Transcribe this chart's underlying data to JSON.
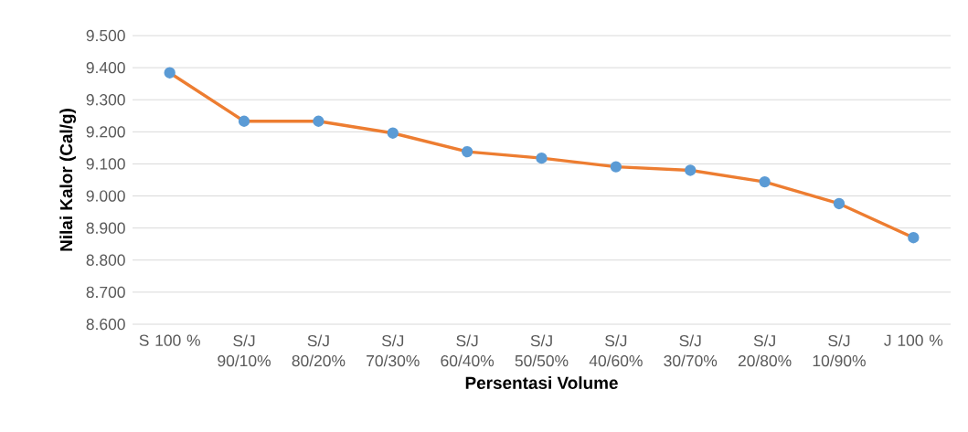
{
  "chart_data": {
    "type": "line",
    "xlabel": "Persentasi Volume",
    "ylabel": "Nilai Kalor (Cal/g)",
    "categories": [
      "S 100 %",
      "S/J 90/10%",
      "S/J 80/20%",
      "S/J 70/30%",
      "S/J 60/40%",
      "S/J 50/50%",
      "S/J 40/60%",
      "S/J 30/70%",
      "S/J 20/80%",
      "S/J 10/90%",
      "J 100 %"
    ],
    "series": [
      {
        "color": "#ed7d31",
        "values": [
          9384,
          9233,
          9233,
          9196,
          9138,
          9118,
          9091,
          9080,
          9044,
          8976,
          8870
        ]
      }
    ],
    "ylim": [
      8600,
      9500
    ],
    "yticks": [
      {
        "value": 8600,
        "label": "8.600"
      },
      {
        "value": 8700,
        "label": "8.700"
      },
      {
        "value": 8800,
        "label": "8.800"
      },
      {
        "value": 8900,
        "label": "8.900"
      },
      {
        "value": 9000,
        "label": "9.000"
      },
      {
        "value": 9100,
        "label": "9.100"
      },
      {
        "value": 9200,
        "label": "9.200"
      },
      {
        "value": 9300,
        "label": "9.300"
      },
      {
        "value": 9400,
        "label": "9.400"
      },
      {
        "value": 9500,
        "label": "9.500"
      }
    ],
    "grid": "y",
    "marker": "circle",
    "line_style": "solid"
  }
}
